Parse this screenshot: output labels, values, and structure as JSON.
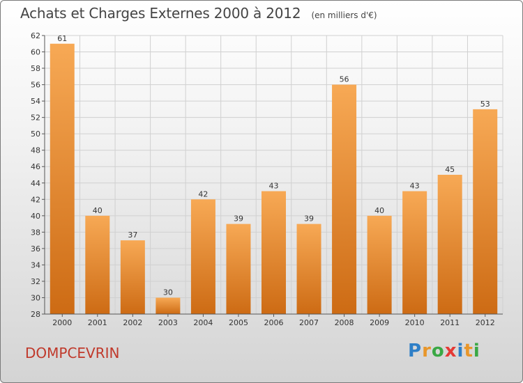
{
  "header": {
    "title": "Achats et Charges Externes 2000 à 2012",
    "unit": "(en milliers d'€)"
  },
  "footer": {
    "commune": "DOMPCEVRIN",
    "logo_letters": [
      "P",
      "r",
      "o",
      "x",
      "i",
      "t",
      "i"
    ],
    "logo_colors": [
      "#2e7fc7",
      "#e8962a",
      "#3aa845",
      "#e53935",
      "#2e7fc7",
      "#e8962a",
      "#3aa845"
    ]
  },
  "colors": {
    "bar_light": "#f7a955",
    "bar_dark": "#cd6b14",
    "grid": "#d0d0d0",
    "axis": "#555555"
  },
  "chart_data": {
    "type": "bar",
    "categories": [
      "2000",
      "2001",
      "2002",
      "2003",
      "2004",
      "2005",
      "2006",
      "2007",
      "2008",
      "2009",
      "2010",
      "2011",
      "2012"
    ],
    "values": [
      61,
      40,
      37,
      30,
      42,
      39,
      43,
      39,
      56,
      40,
      43,
      45,
      53
    ],
    "ylim": [
      28,
      62
    ],
    "yticks": [
      28,
      30,
      32,
      34,
      36,
      38,
      40,
      42,
      44,
      46,
      48,
      50,
      52,
      54,
      56,
      58,
      60,
      62
    ],
    "grid": true,
    "data_labels": true
  }
}
